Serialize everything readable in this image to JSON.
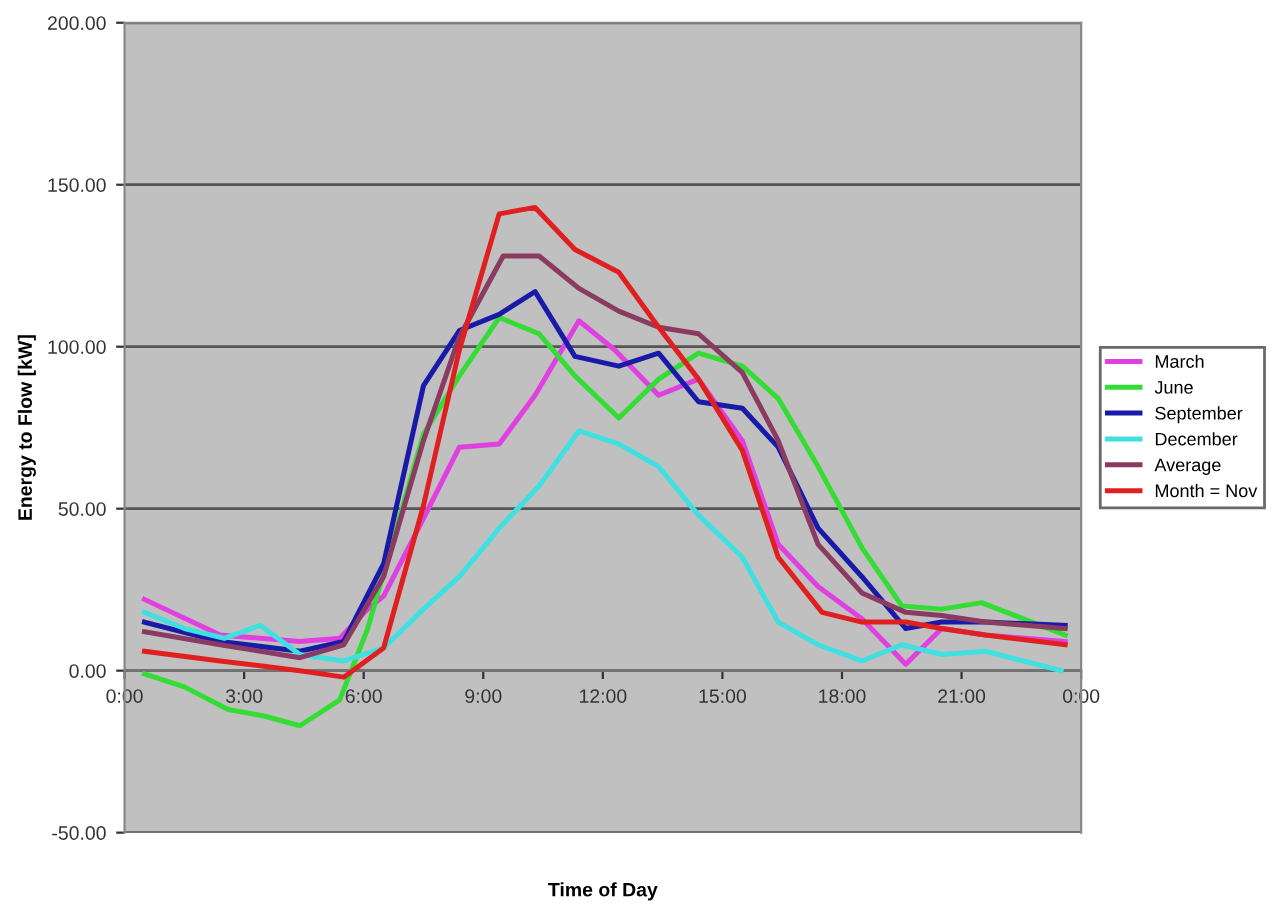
{
  "chart_data": {
    "type": "line",
    "xlabel": "Time of Day",
    "ylabel": "Energy to Flow [kW]",
    "xlim": [
      0,
      24
    ],
    "xticks": [
      {
        "value": 0,
        "label": "0:00"
      },
      {
        "value": 3,
        "label": "3:00"
      },
      {
        "value": 6,
        "label": "6:00"
      },
      {
        "value": 9,
        "label": "9:00"
      },
      {
        "value": 12,
        "label": "12:00"
      },
      {
        "value": 15,
        "label": "15:00"
      },
      {
        "value": 18,
        "label": "18:00"
      },
      {
        "value": 21,
        "label": "21:00"
      },
      {
        "value": 24,
        "label": "0:00"
      }
    ],
    "ylim": [
      -50,
      200
    ],
    "yticks": [
      {
        "value": -50,
        "label": "-50.00"
      },
      {
        "value": 0,
        "label": "0.00"
      },
      {
        "value": 50,
        "label": "50.00"
      },
      {
        "value": 100,
        "label": "100.00"
      },
      {
        "value": 150,
        "label": "150.00"
      },
      {
        "value": 200,
        "label": "200.00"
      }
    ],
    "grid": "y",
    "legend": "right",
    "marker": "none",
    "series": [
      {
        "name": "March",
        "color": "#e040e0",
        "x": [
          0.5,
          2.4,
          4.4,
          5.4,
          6.1,
          6.5,
          7.5,
          8.4,
          9.4,
          10.3,
          11.4,
          12.3,
          13.4,
          14.4,
          15.5,
          16.4,
          17.4,
          18.5,
          19.6,
          20.5,
          21.6,
          23.6
        ],
        "values": [
          22,
          11,
          9,
          10,
          19,
          23,
          47,
          69,
          70,
          85,
          108,
          99,
          85,
          90,
          71,
          39,
          26,
          16,
          2,
          13,
          11,
          9
        ]
      },
      {
        "name": "June",
        "color": "#33dd33",
        "x": [
          0.5,
          1.5,
          2.6,
          3.5,
          4.4,
          5.4,
          6.1,
          7.5,
          8.4,
          9.4,
          10.4,
          11.3,
          12.4,
          13.4,
          14.4,
          15.5,
          16.4,
          17.4,
          18.5,
          19.5,
          20.5,
          21.5,
          23.6
        ],
        "values": [
          -1,
          -5,
          -12,
          -14,
          -17,
          -9,
          13,
          73,
          91,
          109,
          104,
          91,
          78,
          90,
          98,
          94,
          84,
          63,
          38,
          20,
          19,
          21,
          11
        ]
      },
      {
        "name": "September",
        "color": "#1a1aa8",
        "x": [
          0.5,
          2.4,
          4.4,
          5.5,
          6.5,
          7.5,
          8.4,
          9.4,
          10.3,
          11.3,
          12.4,
          13.4,
          14.4,
          15.5,
          16.4,
          17.4,
          18.5,
          19.6,
          20.5,
          21.6,
          23.6
        ],
        "values": [
          15,
          9,
          6,
          9,
          33,
          88,
          105,
          110,
          117,
          97,
          94,
          98,
          83,
          81,
          69,
          44,
          29,
          13,
          15,
          15,
          14
        ]
      },
      {
        "name": "December",
        "color": "#40e0e0",
        "x": [
          0.5,
          1.5,
          2.5,
          3.4,
          4.4,
          5.5,
          6.5,
          7.5,
          8.4,
          9.4,
          10.4,
          11.4,
          12.4,
          13.4,
          14.4,
          15.5,
          16.4,
          17.4,
          18.5,
          19.5,
          20.5,
          21.6,
          23.5
        ],
        "values": [
          18,
          13,
          10,
          14,
          5,
          3,
          7,
          19,
          29,
          44,
          57,
          74,
          70,
          63,
          48,
          35,
          15,
          8,
          3,
          8,
          5,
          6,
          0
        ]
      },
      {
        "name": "Average",
        "color": "#8b3a62",
        "x": [
          0.5,
          2.4,
          4.4,
          5.5,
          6.5,
          7.5,
          8.4,
          9.5,
          10.4,
          11.4,
          12.4,
          13.4,
          14.4,
          15.5,
          16.4,
          17.4,
          18.5,
          19.6,
          20.5,
          21.6,
          23.6
        ],
        "values": [
          12,
          8,
          4,
          8,
          29,
          71,
          103,
          128,
          128,
          118,
          111,
          106,
          104,
          92,
          71,
          39,
          24,
          18,
          17,
          15,
          13
        ]
      },
      {
        "name": "Month = Nov",
        "color": "#e02020",
        "x": [
          0.5,
          2.4,
          4.4,
          5.5,
          6.5,
          7.5,
          8.4,
          9.4,
          10.3,
          11.3,
          12.4,
          13.4,
          14.4,
          15.5,
          16.4,
          17.5,
          18.5,
          19.6,
          20.5,
          21.6,
          23.6
        ],
        "values": [
          6,
          3,
          0,
          -2,
          7,
          51,
          99,
          141,
          143,
          130,
          123,
          106,
          90,
          68,
          35,
          18,
          15,
          15,
          13,
          11,
          8
        ]
      }
    ]
  }
}
